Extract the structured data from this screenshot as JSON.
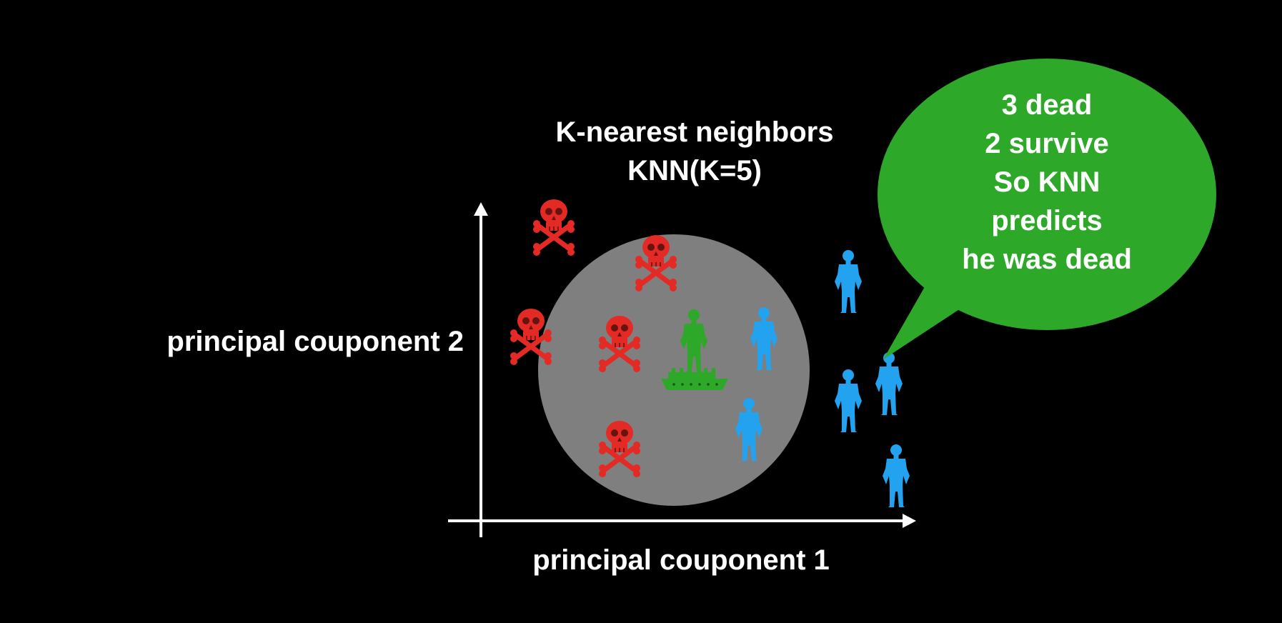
{
  "title": {
    "line1": "K-nearest neighbors",
    "line2": "KNN(K=5)"
  },
  "axes": {
    "x_label": "principal couponent 1",
    "y_label": "principal couponent 2"
  },
  "bubble": {
    "lines": [
      "3 dead",
      "2 survive",
      "So KNN",
      "predicts",
      "he was dead"
    ],
    "color": "#2ea828"
  },
  "colors": {
    "background": "#000000",
    "dead": "#e42a24",
    "survived": "#23a2f0",
    "query": "#2ea828",
    "neighborhood": "#7f7f7f",
    "axis": "#ffffff"
  },
  "legend_icons": {
    "dead": "skull-crossbones-icon",
    "survived": "person-icon",
    "query": "person-on-ship-icon"
  }
}
